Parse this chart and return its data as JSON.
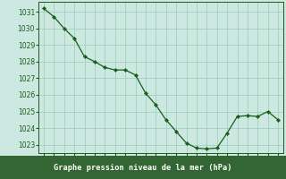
{
  "hours": [
    0,
    1,
    2,
    3,
    4,
    5,
    6,
    7,
    8,
    9,
    10,
    11,
    12,
    13,
    14,
    15,
    16,
    17,
    18,
    19,
    20,
    21,
    22,
    23
  ],
  "pressure": [
    1031.2,
    1030.7,
    1030.0,
    1029.4,
    1028.3,
    1028.0,
    1027.65,
    1027.5,
    1027.5,
    1027.2,
    1026.1,
    1025.4,
    1024.5,
    1023.8,
    1023.1,
    1022.8,
    1022.75,
    1022.8,
    1023.7,
    1024.7,
    1024.75,
    1024.7,
    1025.0,
    1024.5
  ],
  "bg_color": "#cce8e0",
  "line_color": "#1a5c1a",
  "marker_color": "#1a5c1a",
  "grid_color": "#99ccbb",
  "title": "Graphe pression niveau de la mer (hPa)",
  "title_bg": "#336633",
  "title_text_color": "#ffffff",
  "ylim_min": 1022.5,
  "ylim_max": 1031.6,
  "yticks": [
    1023,
    1024,
    1025,
    1026,
    1027,
    1028,
    1029,
    1030,
    1031
  ]
}
